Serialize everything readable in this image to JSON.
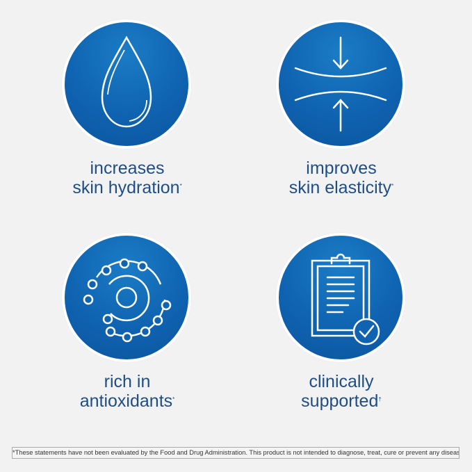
{
  "features": [
    {
      "icon": "water-drop-icon",
      "line1": "increases",
      "line2": "skin hydration",
      "mark": "*"
    },
    {
      "icon": "compress-arrows-icon",
      "line1": "improves",
      "line2": "skin elasticity",
      "mark": "*"
    },
    {
      "icon": "molecule-orbit-icon",
      "line1": "rich in",
      "line2": "antioxidants",
      "mark": "*"
    },
    {
      "icon": "clipboard-check-icon",
      "line1": "clinically",
      "line2": "supported",
      "mark": "†"
    }
  ],
  "disclaimer": "*These statements have not been evaluated by the Food and Drug Administration. This product is not intended to diagnose, treat, cure or prevent any disease.",
  "colors": {
    "background": "#f2f2f2",
    "circle": "#0f63b0",
    "text": "#1f4d86"
  }
}
